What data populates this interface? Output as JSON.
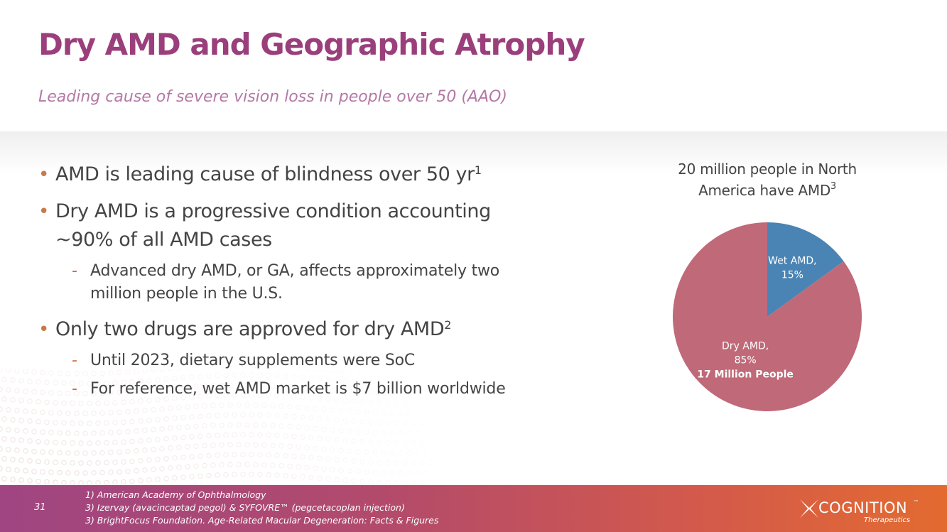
{
  "slide": {
    "title": "Dry AMD and Geographic Atrophy",
    "subtitle": "Leading cause of severe vision loss in people over 50 (AAO)",
    "page_number": "31"
  },
  "bullets": {
    "b1": {
      "text": "AMD is leading cause of blindness over 50 yr",
      "sup": "1"
    },
    "b2": {
      "line1": "Dry AMD is a progressive condition accounting",
      "line2": "~90% of all AMD cases"
    },
    "b2_sub1": {
      "line1": "Advanced dry AMD, or GA, affects approximately two",
      "line2": "million people in the U.S."
    },
    "b3": {
      "text": "Only two drugs are approved for dry AMD",
      "sup": "2"
    },
    "b3_sub1": "Until 2023, dietary supplements were SoC",
    "b3_sub2": "For reference, wet AMD market is $7 billion worldwide",
    "main_marker": "•",
    "sub_marker": "-"
  },
  "chart_data": {
    "type": "pie",
    "title_line1": "20 million people in North",
    "title_line2": "America have AMD",
    "title_sup": "3",
    "slices": [
      {
        "name": "Wet AMD,",
        "value": 15,
        "label": "15%",
        "color": "#4a84b4"
      },
      {
        "name": "Dry AMD,",
        "value": 85,
        "label": "85%",
        "extra": "17 Million People",
        "color": "#c06978"
      }
    ],
    "start_angle_deg": 0,
    "direction": "clockwise"
  },
  "footer": {
    "references": [
      "1) American Academy of Ophthalmology",
      "3) Izervay (avacincaptad pegol) & SYFOVRE™ (pegcetacoplan injection)",
      "3) BrightFocus Foundation. Age-Related Macular Degeneration: Facts & Figures"
    ],
    "logo_text": "COGNITION",
    "logo_tm": "™",
    "logo_sub": "Therapeutics"
  },
  "colors": {
    "title": "#9b3f7c",
    "subtitle": "#b578a5",
    "footer_left": "#a04582",
    "footer_right": "#e36b30",
    "bullet_marker": "#c77a4a"
  }
}
